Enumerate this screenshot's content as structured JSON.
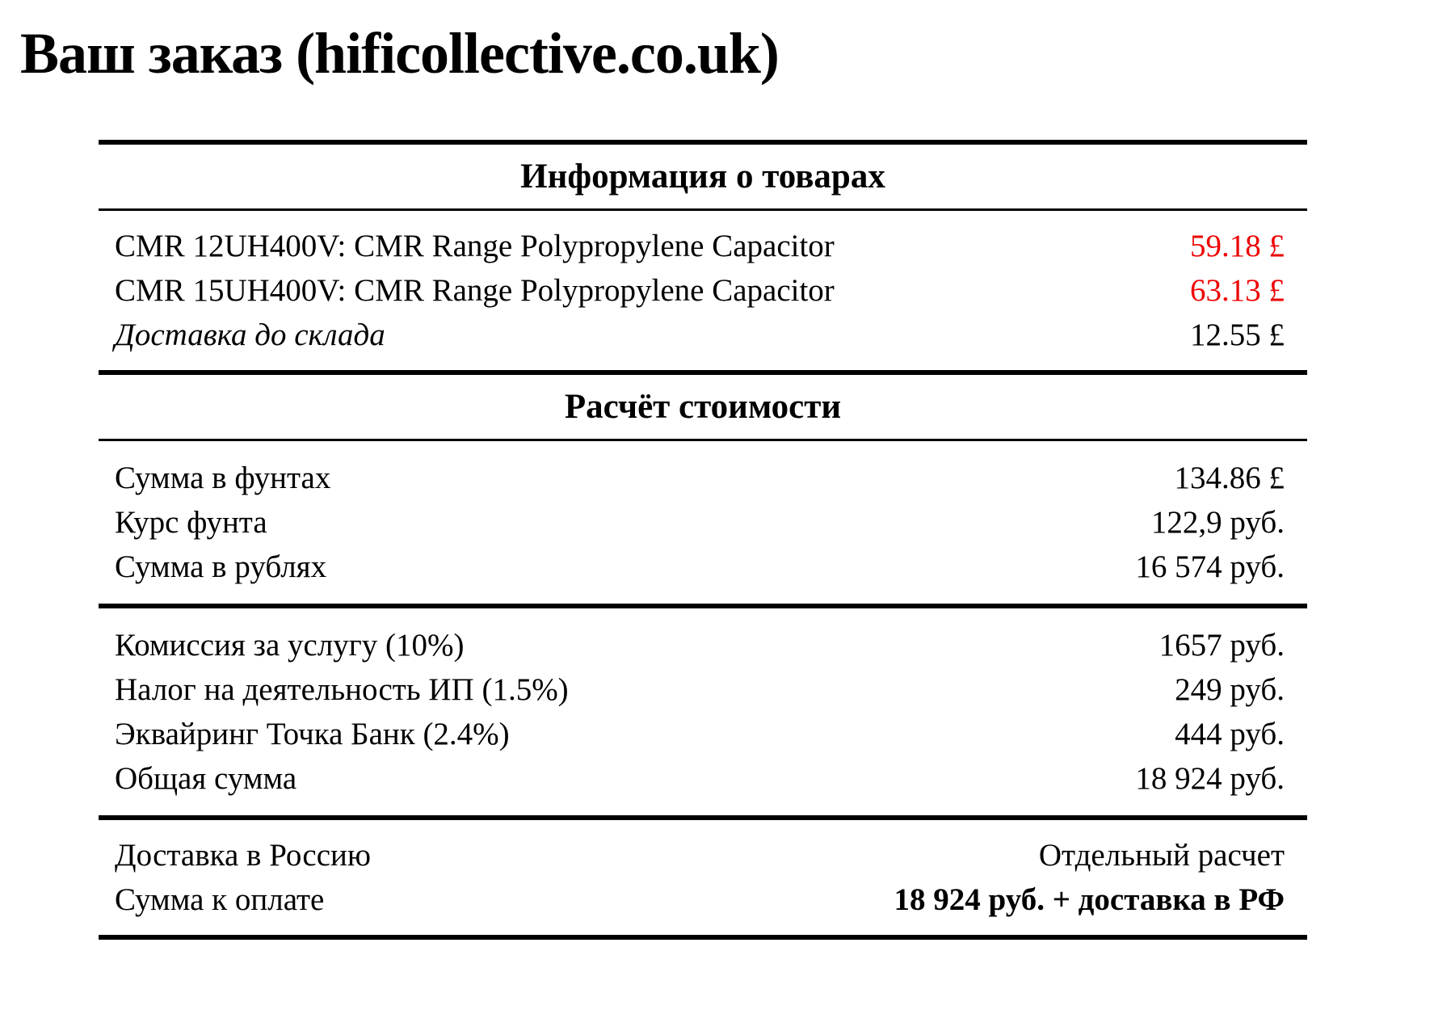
{
  "title": "Ваш заказ (hificollective.co.uk)",
  "colors": {
    "price_highlight": "#ee0000",
    "text": "#000000",
    "background": "#ffffff"
  },
  "sections": {
    "products": {
      "header": "Информация о товарах",
      "rows": [
        {
          "label": "CMR 12UH400V: CMR Range Polypropylene Capacitor",
          "value": "59.18 £"
        },
        {
          "label": "CMR 15UH400V: CMR Range Polypropylene Capacitor",
          "value": "63.13 £"
        },
        {
          "label": "Доставка до склада",
          "value": "12.55 £"
        }
      ]
    },
    "calc": {
      "header": "Расчёт стоимости",
      "subtotal_rows": [
        {
          "label": "Сумма в фунтах",
          "value": "134.86 £"
        },
        {
          "label": "Курс фунта",
          "value": "122,9 руб."
        },
        {
          "label": "Сумма в рублях",
          "value": "16 574 руб."
        }
      ],
      "fees_rows": [
        {
          "label": "Комиссия за услугу (10%)",
          "value": "1657 руб."
        },
        {
          "label": "Налог на деятельность ИП (1.5%)",
          "value": "249 руб."
        },
        {
          "label": "Эквайринг Точка Банк (2.4%)",
          "value": "444 руб."
        },
        {
          "label": "Общая сумма",
          "value": "18 924 руб."
        }
      ],
      "total_rows": [
        {
          "label": "Доставка в Россию",
          "value": "Отдельный расчет"
        },
        {
          "label": "Сумма к оплате",
          "value": "18 924 руб. + доставка в РФ"
        }
      ]
    }
  }
}
